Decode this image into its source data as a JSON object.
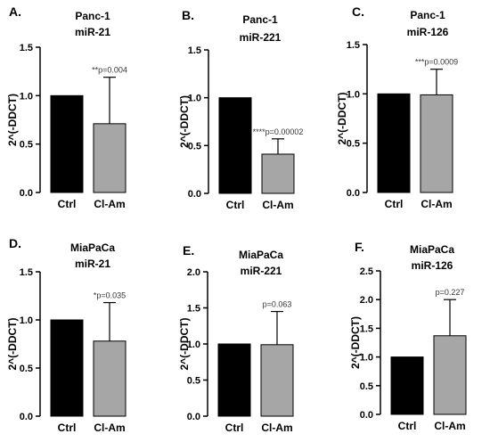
{
  "chart_data": [
    {
      "type": "bar",
      "panel_label": "A.",
      "title": "Panc-1",
      "subtitle": "miR-21",
      "ylabel": "2^(-DDCT)",
      "categories": [
        "Ctrl",
        "Cl-Am"
      ],
      "values": [
        1.0,
        0.71
      ],
      "error_upper": [
        0,
        1.19
      ],
      "ylim": [
        0.0,
        1.5
      ],
      "yticks": [
        0.0,
        0.5,
        1.0,
        1.5
      ],
      "ytick_labels": [
        "0.0",
        "0.5",
        "1.0",
        "1.5"
      ],
      "annotation": "**p=0.004",
      "bar_colors": [
        "#000000",
        "#a6a6a6"
      ]
    },
    {
      "type": "bar",
      "panel_label": "B.",
      "title": "Panc-1",
      "subtitle": "miR-221",
      "ylabel": "2^(-DDCT)",
      "categories": [
        "Ctrl",
        "Cl-Am"
      ],
      "values": [
        1.0,
        0.41
      ],
      "error_upper": [
        0,
        0.57
      ],
      "ylim": [
        0.0,
        1.5
      ],
      "yticks": [
        0.0,
        0.5,
        1.0,
        1.5
      ],
      "ytick_labels": [
        "0.0",
        "0.5",
        "1.0",
        "1.5"
      ],
      "annotation": "****p=0.00002",
      "bar_colors": [
        "#000000",
        "#a6a6a6"
      ]
    },
    {
      "type": "bar",
      "panel_label": "C.",
      "title": "Panc-1",
      "subtitle": "miR-126",
      "ylabel": "2^(-DDCT)",
      "categories": [
        "Ctrl",
        "Cl-Am"
      ],
      "values": [
        1.0,
        0.99
      ],
      "error_upper": [
        0,
        1.25
      ],
      "ylim": [
        0.0,
        1.5
      ],
      "yticks": [
        0.0,
        0.5,
        1.0,
        1.5
      ],
      "ytick_labels": [
        "0.0",
        "0.5",
        "1.0",
        "1.5"
      ],
      "annotation": "***p=0.0009",
      "bar_colors": [
        "#000000",
        "#a6a6a6"
      ]
    },
    {
      "type": "bar",
      "panel_label": "D.",
      "title": "MiaPaCa",
      "subtitle": "miR-21",
      "ylabel": "2^(-DDCT)",
      "categories": [
        "Ctrl",
        "Cl-Am"
      ],
      "values": [
        1.0,
        0.78
      ],
      "error_upper": [
        0,
        1.18
      ],
      "ylim": [
        0.0,
        1.5
      ],
      "yticks": [
        0.0,
        0.5,
        1.0,
        1.5
      ],
      "ytick_labels": [
        "0.0",
        "0.5",
        "1.0",
        "1.5"
      ],
      "annotation": "*p=0.035",
      "bar_colors": [
        "#000000",
        "#a6a6a6"
      ]
    },
    {
      "type": "bar",
      "panel_label": "E.",
      "title": "MiaPaCa",
      "subtitle": "miR-221",
      "ylabel": "2^(-DDCT)",
      "categories": [
        "Ctrl",
        "Cl-Am"
      ],
      "values": [
        1.0,
        0.99
      ],
      "error_upper": [
        0,
        1.45
      ],
      "ylim": [
        0.0,
        2.0
      ],
      "yticks": [
        0.0,
        0.5,
        1.0,
        1.5,
        2.0
      ],
      "ytick_labels": [
        "0.0",
        "0.5",
        "1.0",
        "1.5",
        "2.0"
      ],
      "annotation": "p=0.063",
      "bar_colors": [
        "#000000",
        "#a6a6a6"
      ]
    },
    {
      "type": "bar",
      "panel_label": "F.",
      "title": "MiaPaCa",
      "subtitle": "miR-126",
      "ylabel": "2^(-DDCT)",
      "categories": [
        "Ctrl",
        "Cl-Am"
      ],
      "values": [
        1.0,
        1.37
      ],
      "error_upper": [
        0,
        2.0
      ],
      "ylim": [
        0.0,
        2.5
      ],
      "yticks": [
        0.0,
        0.5,
        1.0,
        1.5,
        2.0,
        2.5
      ],
      "ytick_labels": [
        "0.0",
        "0.5",
        "1.0",
        "1.5",
        "2.0",
        "2.5"
      ],
      "annotation": "p=0.227",
      "bar_colors": [
        "#000000",
        "#a6a6a6"
      ]
    }
  ]
}
